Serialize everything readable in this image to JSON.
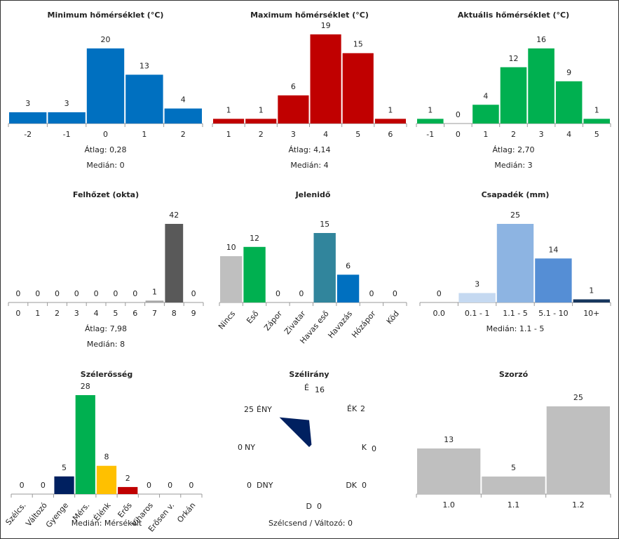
{
  "chart_data": [
    {
      "type": "bar",
      "title": "Minimum hőmérséklet (°C)",
      "categories": [
        "-2",
        "-1",
        "0",
        "1",
        "2"
      ],
      "values": [
        3,
        3,
        20,
        13,
        4
      ],
      "colors": [
        "#0070c0",
        "#0070c0",
        "#0070c0",
        "#0070c0",
        "#0070c0"
      ],
      "annotations": [
        "Átlag:  0,28",
        "Medián:  0"
      ]
    },
    {
      "type": "bar",
      "title": "Maximum hőmérséklet (°C)",
      "categories": [
        "1",
        "2",
        "3",
        "4",
        "5",
        "6"
      ],
      "values": [
        1,
        1,
        6,
        19,
        15,
        1
      ],
      "colors": [
        "#c00000",
        "#c00000",
        "#c00000",
        "#c00000",
        "#c00000",
        "#c00000"
      ],
      "annotations": [
        "Átlag:  4,14",
        "Medián:  4"
      ]
    },
    {
      "type": "bar",
      "title": "Aktuális hőmérséklet (°C)",
      "categories": [
        "-1",
        "0",
        "1",
        "2",
        "3",
        "4",
        "5"
      ],
      "values": [
        1,
        0,
        4,
        12,
        16,
        9,
        1
      ],
      "colors": [
        "#00b050",
        "#00b050",
        "#00b050",
        "#00b050",
        "#00b050",
        "#00b050",
        "#00b050"
      ],
      "annotations": [
        "Átlag:  2,70",
        "Medián:  3"
      ]
    },
    {
      "type": "bar",
      "title": "Felhőzet (okta)",
      "categories": [
        "0",
        "1",
        "2",
        "3",
        "4",
        "5",
        "6",
        "7",
        "8",
        "9"
      ],
      "values": [
        0,
        0,
        0,
        0,
        0,
        0,
        0,
        1,
        42,
        0
      ],
      "colors": [
        "#d9d9d9",
        "#d9d9d9",
        "#d9d9d9",
        "#d9d9d9",
        "#d9d9d9",
        "#bfbfbf",
        "#a6a6a6",
        "#a6a6a6",
        "#595959",
        "#404040"
      ],
      "annotations": [
        "Átlag:  7,98",
        "Medián:  8"
      ]
    },
    {
      "type": "bar",
      "title": "Jelenidő",
      "categories": [
        "Nincs",
        "Eső",
        "Zápor",
        "Zivatar",
        "Havas eső",
        "Havazás",
        "Hózápor",
        "Köd"
      ],
      "values": [
        10,
        12,
        0,
        0,
        15,
        6,
        0,
        0
      ],
      "colors": [
        "#bfbfbf",
        "#00b050",
        "#00b050",
        "#7030a0",
        "#31859c",
        "#0070c0",
        "#0070c0",
        "#a6a6a6"
      ],
      "annotations": []
    },
    {
      "type": "bar",
      "title": "Csapadék (mm)",
      "categories": [
        "0.0",
        "0.1 - 1",
        "1.1 - 5",
        "5.1 - 10",
        "10+"
      ],
      "values": [
        0,
        3,
        25,
        14,
        1
      ],
      "colors": [
        "#e0ebf8",
        "#c5d9f1",
        "#8db4e2",
        "#558ed5",
        "#17375e"
      ],
      "annotations": [
        "Medián:  1.1 - 5"
      ]
    },
    {
      "type": "bar",
      "title": "Szélerősség",
      "categories": [
        "Szélcs.",
        "Változó",
        "Gyenge",
        "Mérs.",
        "Élénk",
        "Erős",
        "Viharos",
        "Erősen v.",
        "Orkán"
      ],
      "values": [
        0,
        0,
        5,
        28,
        8,
        2,
        0,
        0,
        0
      ],
      "colors": [
        "#bfbfbf",
        "#bfbfbf",
        "#002060",
        "#00b050",
        "#ffc000",
        "#c00000",
        "#7030a0",
        "#7030a0",
        "#000000"
      ],
      "annotations": [
        "Medián:  Mérsékelt"
      ]
    },
    {
      "type": "radar",
      "title": "Szélirány",
      "categories": [
        "É",
        "ÉK",
        "K",
        "DK",
        "D",
        "DNY",
        "NY",
        "ÉNY"
      ],
      "values": [
        16,
        2,
        0,
        0,
        0,
        0,
        0,
        25
      ],
      "color": "#002060",
      "annotations": [
        "Szélcsend / Változó: 0"
      ]
    },
    {
      "type": "bar",
      "title": "Szorzó",
      "categories": [
        "1.0",
        "1.1",
        "1.2"
      ],
      "values": [
        13,
        5,
        25
      ],
      "colors": [
        "#bfbfbf",
        "#bfbfbf",
        "#bfbfbf"
      ],
      "annotations": []
    }
  ]
}
